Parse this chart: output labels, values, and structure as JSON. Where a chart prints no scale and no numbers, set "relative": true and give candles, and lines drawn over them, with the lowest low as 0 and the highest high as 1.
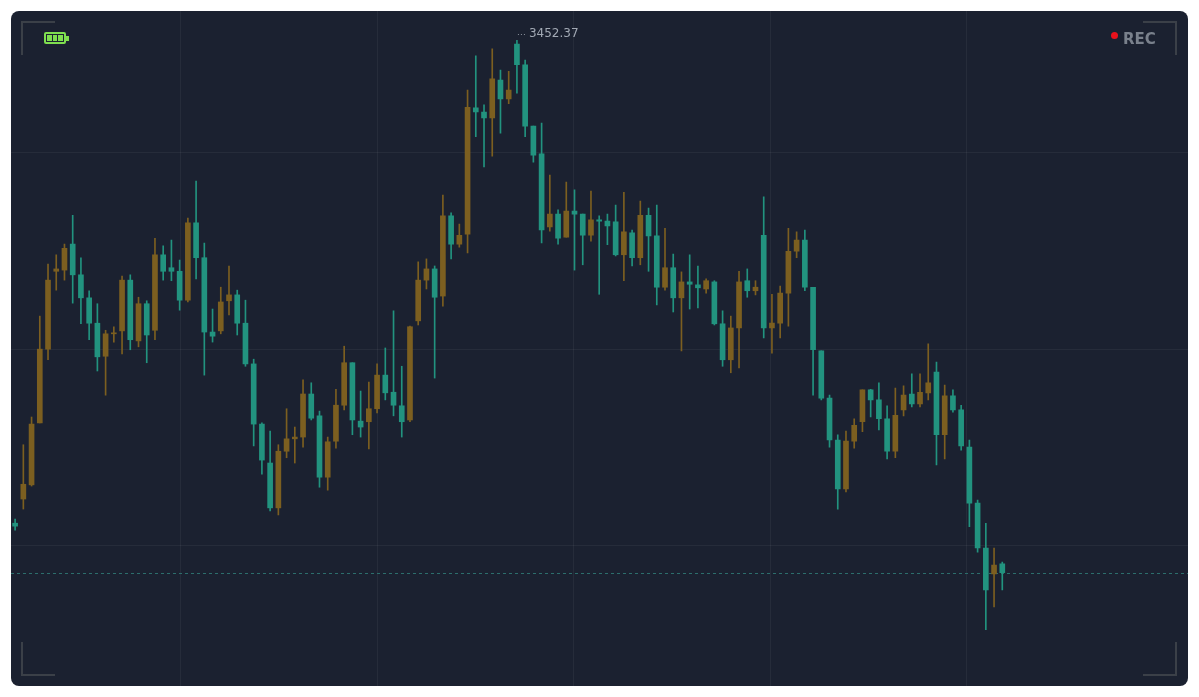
{
  "chart_data": {
    "type": "candlestick",
    "relative": true,
    "categories": [
      null,
      null,
      null,
      null,
      null,
      null,
      null,
      null,
      null,
      null,
      null,
      null,
      null,
      null,
      null,
      null,
      null,
      null,
      null,
      null,
      null,
      null,
      null,
      null,
      null,
      null,
      null,
      null,
      null,
      null,
      null,
      null,
      null,
      null,
      null,
      null,
      null,
      null,
      null,
      null,
      null,
      null,
      null,
      null,
      null,
      null,
      null,
      null,
      null,
      null,
      null,
      null,
      null,
      null,
      null,
      null,
      null,
      null,
      null,
      null,
      null,
      null,
      null,
      null,
      null,
      null,
      null,
      null,
      null,
      null,
      null,
      null,
      null,
      null,
      null,
      null,
      null,
      null,
      null,
      null,
      null,
      null,
      null,
      null,
      null,
      null,
      null,
      null,
      null,
      null,
      null,
      null,
      null,
      null,
      null,
      null,
      null,
      null,
      null,
      null,
      null,
      null,
      null,
      null,
      null,
      null,
      null,
      null,
      null,
      null,
      null,
      null,
      null,
      null,
      null,
      null,
      null,
      null,
      null,
      null,
      null
    ],
    "ohlc": [
      [
        0.181,
        0.188,
        0.169,
        0.176
      ],
      [
        0.222,
        0.314,
        0.205,
        0.247
      ],
      [
        0.246,
        0.361,
        0.244,
        0.349
      ],
      [
        0.351,
        0.532,
        0.351,
        0.476
      ],
      [
        0.476,
        0.62,
        0.458,
        0.593
      ],
      [
        0.608,
        0.636,
        0.576,
        0.612
      ],
      [
        0.61,
        0.654,
        0.593,
        0.647
      ],
      [
        0.654,
        0.703,
        0.554,
        0.602
      ],
      [
        0.602,
        0.631,
        0.519,
        0.563
      ],
      [
        0.563,
        0.575,
        0.492,
        0.52
      ],
      [
        0.52,
        0.553,
        0.439,
        0.463
      ],
      [
        0.464,
        0.508,
        0.398,
        0.502
      ],
      [
        0.502,
        0.514,
        0.488,
        0.503
      ],
      [
        0.507,
        0.6,
        0.468,
        0.593
      ],
      [
        0.593,
        0.602,
        0.475,
        0.492
      ],
      [
        0.49,
        0.564,
        0.48,
        0.553
      ],
      [
        0.553,
        0.558,
        0.453,
        0.5
      ],
      [
        0.508,
        0.664,
        0.492,
        0.636
      ],
      [
        0.636,
        0.651,
        0.593,
        0.608
      ],
      [
        0.614,
        0.661,
        0.592,
        0.608
      ],
      [
        0.608,
        0.627,
        0.542,
        0.559
      ],
      [
        0.559,
        0.698,
        0.556,
        0.69
      ],
      [
        0.69,
        0.761,
        0.595,
        0.631
      ],
      [
        0.631,
        0.656,
        0.432,
        0.505
      ],
      [
        0.505,
        0.544,
        0.488,
        0.498
      ],
      [
        0.507,
        0.581,
        0.502,
        0.556
      ],
      [
        0.558,
        0.617,
        0.534,
        0.568
      ],
      [
        0.568,
        0.576,
        0.5,
        0.52
      ],
      [
        0.52,
        0.559,
        0.447,
        0.451
      ],
      [
        0.451,
        0.459,
        0.312,
        0.349
      ],
      [
        0.349,
        0.351,
        0.264,
        0.288
      ],
      [
        0.283,
        0.337,
        0.202,
        0.207
      ],
      [
        0.207,
        0.314,
        0.195,
        0.303
      ],
      [
        0.303,
        0.375,
        0.292,
        0.324
      ],
      [
        0.324,
        0.344,
        0.283,
        0.327
      ],
      [
        0.327,
        0.424,
        0.31,
        0.4
      ],
      [
        0.4,
        0.419,
        0.356,
        0.359
      ],
      [
        0.363,
        0.371,
        0.242,
        0.259
      ],
      [
        0.259,
        0.327,
        0.237,
        0.319
      ],
      [
        0.32,
        0.408,
        0.308,
        0.381
      ],
      [
        0.381,
        0.481,
        0.373,
        0.453
      ],
      [
        0.453,
        0.453,
        0.331,
        0.356
      ],
      [
        0.354,
        0.405,
        0.327,
        0.344
      ],
      [
        0.353,
        0.42,
        0.307,
        0.375
      ],
      [
        0.375,
        0.451,
        0.368,
        0.432
      ],
      [
        0.432,
        0.478,
        0.39,
        0.402
      ],
      [
        0.403,
        0.541,
        0.363,
        0.381
      ],
      [
        0.38,
        0.447,
        0.327,
        0.353
      ],
      [
        0.356,
        0.515,
        0.353,
        0.514
      ],
      [
        0.524,
        0.624,
        0.517,
        0.593
      ],
      [
        0.593,
        0.629,
        0.578,
        0.612
      ],
      [
        0.612,
        0.617,
        0.427,
        0.564
      ],
      [
        0.566,
        0.737,
        0.549,
        0.702
      ],
      [
        0.702,
        0.707,
        0.629,
        0.654
      ],
      [
        0.654,
        0.688,
        0.649,
        0.669
      ],
      [
        0.671,
        0.915,
        0.639,
        0.886
      ],
      [
        0.885,
        0.973,
        0.836,
        0.878
      ],
      [
        0.878,
        0.89,
        0.785,
        0.868
      ],
      [
        0.868,
        0.985,
        0.803,
        0.934
      ],
      [
        0.932,
        0.949,
        0.842,
        0.9
      ],
      [
        0.9,
        0.947,
        0.892,
        0.915
      ],
      [
        0.993,
        1,
        0.91,
        0.958
      ],
      [
        0.958,
        0.966,
        0.836,
        0.854
      ],
      [
        0.854,
        0.854,
        0.793,
        0.805
      ],
      [
        0.807,
        0.859,
        0.656,
        0.678
      ],
      [
        0.683,
        0.771,
        0.676,
        0.705
      ],
      [
        0.705,
        0.712,
        0.654,
        0.664
      ],
      [
        0.666,
        0.759,
        0.666,
        0.71
      ],
      [
        0.71,
        0.746,
        0.61,
        0.705
      ],
      [
        0.705,
        0.705,
        0.619,
        0.669
      ],
      [
        0.669,
        0.744,
        0.659,
        0.695
      ],
      [
        0.695,
        0.702,
        0.569,
        0.693
      ],
      [
        0.693,
        0.705,
        0.653,
        0.685
      ],
      [
        0.692,
        0.72,
        0.634,
        0.636
      ],
      [
        0.636,
        0.742,
        0.592,
        0.675
      ],
      [
        0.673,
        0.678,
        0.617,
        0.631
      ],
      [
        0.631,
        0.727,
        0.619,
        0.703
      ],
      [
        0.703,
        0.715,
        0.608,
        0.668
      ],
      [
        0.668,
        0.72,
        0.551,
        0.581
      ],
      [
        0.581,
        0.681,
        0.576,
        0.614
      ],
      [
        0.614,
        0.637,
        0.539,
        0.563
      ],
      [
        0.563,
        0.607,
        0.473,
        0.59
      ],
      [
        0.59,
        0.636,
        0.544,
        0.586
      ],
      [
        0.585,
        0.617,
        0.546,
        0.58
      ],
      [
        0.578,
        0.595,
        0.571,
        0.592
      ],
      [
        0.59,
        0.592,
        0.517,
        0.519
      ],
      [
        0.519,
        0.541,
        0.447,
        0.458
      ],
      [
        0.458,
        0.532,
        0.436,
        0.512
      ],
      [
        0.512,
        0.608,
        0.444,
        0.59
      ],
      [
        0.592,
        0.612,
        0.564,
        0.575
      ],
      [
        0.575,
        0.592,
        0.568,
        0.581
      ],
      [
        0.669,
        0.734,
        0.495,
        0.512
      ],
      [
        0.512,
        0.569,
        0.469,
        0.52
      ],
      [
        0.52,
        0.583,
        0.495,
        0.571
      ],
      [
        0.571,
        0.681,
        0.515,
        0.642
      ],
      [
        0.642,
        0.675,
        0.631,
        0.661
      ],
      [
        0.661,
        0.678,
        0.575,
        0.581
      ],
      [
        0.581,
        0.581,
        0.398,
        0.475
      ],
      [
        0.473,
        0.473,
        0.39,
        0.393
      ],
      [
        0.393,
        0.398,
        0.31,
        0.322
      ],
      [
        0.322,
        0.331,
        0.205,
        0.239
      ],
      [
        0.239,
        0.337,
        0.234,
        0.32
      ],
      [
        0.32,
        0.358,
        0.308,
        0.347
      ],
      [
        0.353,
        0.407,
        0.336,
        0.407
      ],
      [
        0.407,
        0.408,
        0.361,
        0.39
      ],
      [
        0.39,
        0.419,
        0.339,
        0.358
      ],
      [
        0.358,
        0.38,
        0.29,
        0.303
      ],
      [
        0.303,
        0.41,
        0.292,
        0.364
      ],
      [
        0.373,
        0.414,
        0.363,
        0.398
      ],
      [
        0.4,
        0.434,
        0.378,
        0.383
      ],
      [
        0.383,
        0.434,
        0.378,
        0.403
      ],
      [
        0.402,
        0.485,
        0.39,
        0.419
      ],
      [
        0.437,
        0.454,
        0.28,
        0.331
      ],
      [
        0.331,
        0.415,
        0.29,
        0.397
      ],
      [
        0.397,
        0.407,
        0.369,
        0.373
      ],
      [
        0.373,
        0.381,
        0.305,
        0.312
      ],
      [
        0.31,
        0.322,
        0.175,
        0.215
      ],
      [
        0.215,
        0.22,
        0.132,
        0.139
      ],
      [
        0.139,
        0.181,
        0,
        0.068
      ],
      [
        0.095,
        0.139,
        0.039,
        0.11
      ],
      [
        0.112,
        0.115,
        0.068,
        0.097
      ]
    ],
    "colors": [
      "#22937f",
      "#7c5f20",
      "#7c5f20",
      "#7c5f20",
      "#7c5f20",
      "#7c5f20",
      "#7c5f20",
      "#22937f",
      "#22937f",
      "#22937f",
      "#22937f",
      "#7c5f20",
      "#7c5f20",
      "#7c5f20",
      "#22937f",
      "#7c5f20",
      "#22937f",
      "#7c5f20",
      "#22937f",
      "#22937f",
      "#22937f",
      "#7c5f20",
      "#22937f",
      "#22937f",
      "#22937f",
      "#7c5f20",
      "#7c5f20",
      "#22937f",
      "#22937f",
      "#22937f",
      "#22937f",
      "#22937f",
      "#7c5f20",
      "#7c5f20",
      "#7c5f20",
      "#7c5f20",
      "#22937f",
      "#22937f",
      "#7c5f20",
      "#7c5f20",
      "#7c5f20",
      "#22937f",
      "#22937f",
      "#7c5f20",
      "#7c5f20",
      "#22937f",
      "#22937f",
      "#22937f",
      "#7c5f20",
      "#7c5f20",
      "#7c5f20",
      "#22937f",
      "#7c5f20",
      "#22937f",
      "#7c5f20",
      "#7c5f20",
      "#22937f",
      "#22937f",
      "#7c5f20",
      "#22937f",
      "#7c5f20",
      "#22937f",
      "#22937f",
      "#22937f",
      "#22937f",
      "#7c5f20",
      "#22937f",
      "#7c5f20",
      "#22937f",
      "#22937f",
      "#7c5f20",
      "#22937f",
      "#22937f",
      "#22937f",
      "#7c5f20",
      "#22937f",
      "#7c5f20",
      "#22937f",
      "#22937f",
      "#7c5f20",
      "#22937f",
      "#7c5f20",
      "#22937f",
      "#22937f",
      "#7c5f20",
      "#22937f",
      "#22937f",
      "#7c5f20",
      "#7c5f20",
      "#22937f",
      "#7c5f20",
      "#22937f",
      "#7c5f20",
      "#7c5f20",
      "#7c5f20",
      "#7c5f20",
      "#22937f",
      "#22937f",
      "#22937f",
      "#22937f",
      "#22937f",
      "#7c5f20",
      "#7c5f20",
      "#7c5f20",
      "#22937f",
      "#22937f",
      "#22937f",
      "#7c5f20",
      "#7c5f20",
      "#22937f",
      "#7c5f20",
      "#7c5f20",
      "#22937f",
      "#7c5f20",
      "#22937f",
      "#22937f",
      "#22937f",
      "#22937f",
      "#22937f",
      "#7c5f20",
      "#22937f"
    ],
    "grid": true,
    "tick_labels": false,
    "ref_lines": [
      {
        "axis": "y",
        "value": 0.097,
        "color": "#2c6e6c",
        "line_style": "dashed"
      }
    ],
    "annotations": [
      "3452.37",
      "REC"
    ]
  }
}
